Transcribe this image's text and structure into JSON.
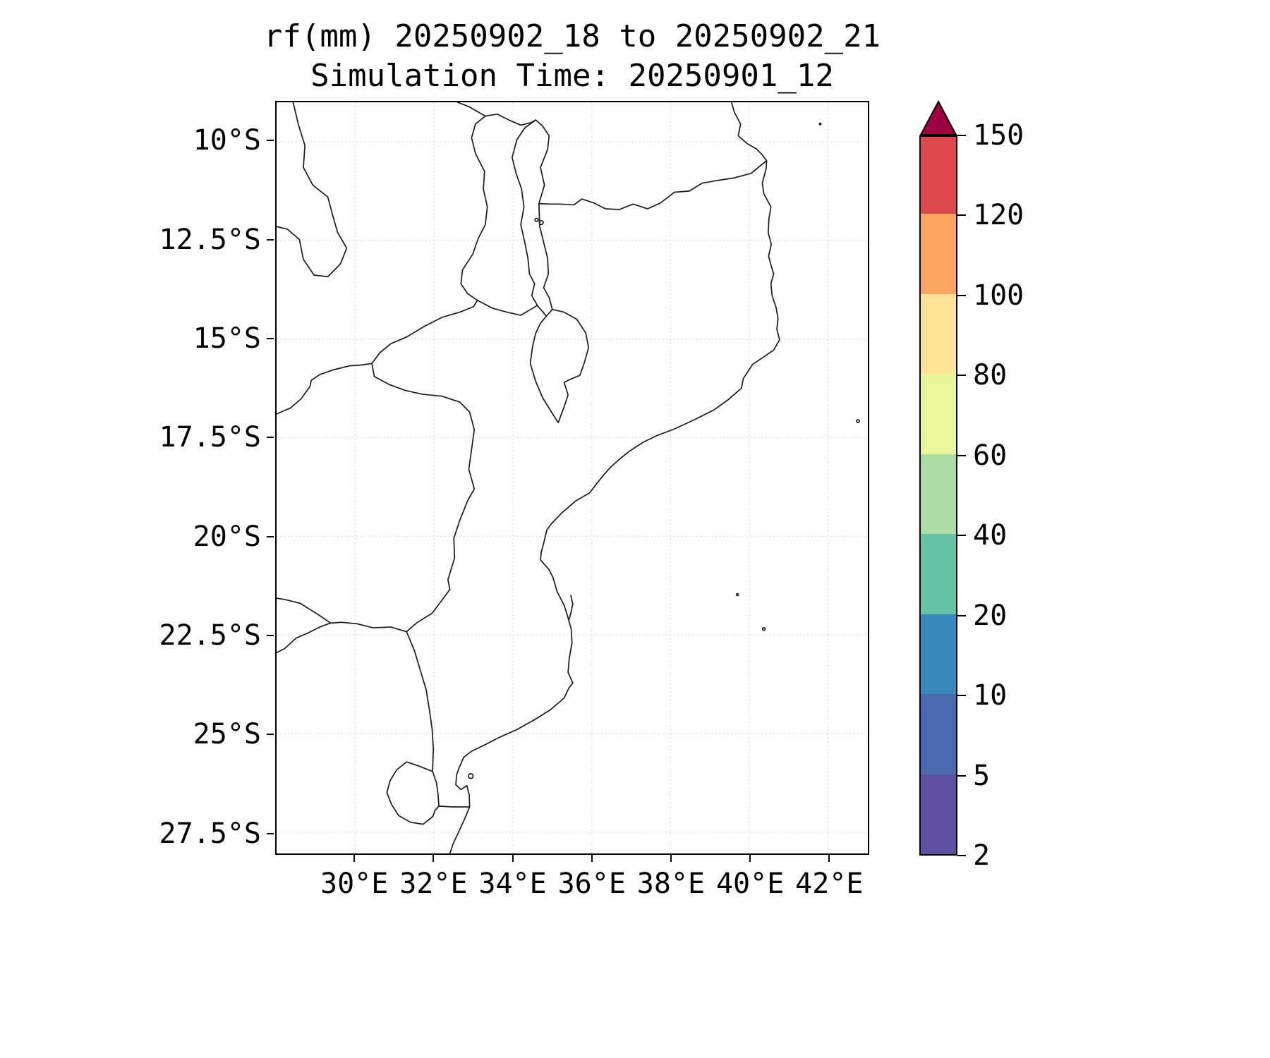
{
  "title": {
    "line1": "rf(mm) 20250902_18 to 20250902_21",
    "line2": "Simulation Time: 20250901_12"
  },
  "axes": {
    "extent": {
      "lon_min": 28.0,
      "lon_max": 43.01,
      "lat_min": 9.0,
      "lat_max": 28.04
    },
    "x_ticks": [
      {
        "lon": 30,
        "label": "30°E"
      },
      {
        "lon": 32,
        "label": "32°E"
      },
      {
        "lon": 34,
        "label": "34°E"
      },
      {
        "lon": 36,
        "label": "36°E"
      },
      {
        "lon": 38,
        "label": "38°E"
      },
      {
        "lon": 40,
        "label": "40°E"
      },
      {
        "lon": 42,
        "label": "42°E"
      }
    ],
    "y_ticks": [
      {
        "lat": 10,
        "label": "10°S"
      },
      {
        "lat": 12.5,
        "label": "12.5°S"
      },
      {
        "lat": 15,
        "label": "15°S"
      },
      {
        "lat": 17.5,
        "label": "17.5°S"
      },
      {
        "lat": 20,
        "label": "20°S"
      },
      {
        "lat": 22.5,
        "label": "22.5°S"
      },
      {
        "lat": 25,
        "label": "25°S"
      },
      {
        "lat": 27.5,
        "label": "27.5°S"
      }
    ]
  },
  "colorbar": {
    "levels": [
      2,
      5,
      10,
      20,
      40,
      60,
      80,
      100,
      120,
      150
    ],
    "tick_labels": [
      "2",
      "5",
      "10",
      "20",
      "40",
      "60",
      "80",
      "100",
      "120",
      "150"
    ],
    "band_colors": [
      "#5e4fa2",
      "#4a69af",
      "#3989bd",
      "#66c2a5",
      "#abdda4",
      "#e8f59b",
      "#fee499",
      "#fca55f",
      "#dc484c"
    ],
    "extend_color": "#9e0142"
  },
  "map": {
    "outline_color": "#1a1a1a",
    "grid_color": "#c9c9c9",
    "polylines": {
      "coastline": [
        [
          39.55,
          9.0
        ],
        [
          39.62,
          9.25
        ],
        [
          39.78,
          9.55
        ],
        [
          39.72,
          9.85
        ],
        [
          39.95,
          10.05
        ],
        [
          40.18,
          10.18
        ],
        [
          40.32,
          10.32
        ],
        [
          40.44,
          10.48
        ],
        [
          40.43,
          10.68
        ],
        [
          40.33,
          11.05
        ],
        [
          40.37,
          11.32
        ],
        [
          40.55,
          11.65
        ],
        [
          40.5,
          11.95
        ],
        [
          40.48,
          12.3
        ],
        [
          40.56,
          12.6
        ],
        [
          40.49,
          12.9
        ],
        [
          40.55,
          13.12
        ],
        [
          40.62,
          13.35
        ],
        [
          40.55,
          13.6
        ],
        [
          40.58,
          13.9
        ],
        [
          40.68,
          14.2
        ],
        [
          40.73,
          14.48
        ],
        [
          40.7,
          14.75
        ],
        [
          40.77,
          15.02
        ],
        [
          40.62,
          15.28
        ],
        [
          40.3,
          15.5
        ],
        [
          40.08,
          15.65
        ],
        [
          39.85,
          16.0
        ],
        [
          39.8,
          16.25
        ],
        [
          39.45,
          16.55
        ],
        [
          39.1,
          16.8
        ],
        [
          38.6,
          17.05
        ],
        [
          38.1,
          17.28
        ],
        [
          37.65,
          17.45
        ],
        [
          37.3,
          17.62
        ],
        [
          36.95,
          17.85
        ],
        [
          36.7,
          18.05
        ],
        [
          36.48,
          18.25
        ],
        [
          36.3,
          18.45
        ],
        [
          36.1,
          18.7
        ],
        [
          35.95,
          18.9
        ],
        [
          35.6,
          19.1
        ],
        [
          35.25,
          19.4
        ],
        [
          34.98,
          19.68
        ],
        [
          34.86,
          19.84
        ],
        [
          34.8,
          20.1
        ],
        [
          34.72,
          20.4
        ],
        [
          34.7,
          20.6
        ],
        [
          34.92,
          20.85
        ],
        [
          35.02,
          21.05
        ],
        [
          35.12,
          21.4
        ],
        [
          35.3,
          21.75
        ],
        [
          35.38,
          22.0
        ],
        [
          35.48,
          22.35
        ],
        [
          35.5,
          22.7
        ],
        [
          35.43,
          23.1
        ],
        [
          35.4,
          23.45
        ],
        [
          35.52,
          23.72
        ],
        [
          35.42,
          23.85
        ],
        [
          35.3,
          24.1
        ],
        [
          34.95,
          24.4
        ],
        [
          34.55,
          24.65
        ],
        [
          34.1,
          24.9
        ],
        [
          33.65,
          25.1
        ],
        [
          33.3,
          25.28
        ],
        [
          32.95,
          25.45
        ],
        [
          32.75,
          25.6
        ],
        [
          32.63,
          25.88
        ],
        [
          32.57,
          26.05
        ],
        [
          32.55,
          26.3
        ],
        [
          32.68,
          26.42
        ],
        [
          32.83,
          26.32
        ],
        [
          32.89,
          26.55
        ],
        [
          32.9,
          26.86
        ],
        [
          32.78,
          27.15
        ],
        [
          32.62,
          27.5
        ],
        [
          32.48,
          27.8
        ],
        [
          32.4,
          28.04
        ]
      ],
      "rovuma-border": [
        [
          40.44,
          10.48
        ],
        [
          40.05,
          10.8
        ],
        [
          39.6,
          10.92
        ],
        [
          39.2,
          10.98
        ],
        [
          38.8,
          11.05
        ],
        [
          38.48,
          11.25
        ],
        [
          38.1,
          11.28
        ],
        [
          37.75,
          11.55
        ],
        [
          37.42,
          11.7
        ],
        [
          37.05,
          11.58
        ],
        [
          36.7,
          11.72
        ],
        [
          36.35,
          11.7
        ],
        [
          36.05,
          11.55
        ],
        [
          35.75,
          11.45
        ],
        [
          35.55,
          11.6
        ],
        [
          35.2,
          11.58
        ],
        [
          34.95,
          11.58
        ],
        [
          34.66,
          11.57
        ]
      ],
      "lake-malawi": [
        [
          34.58,
          9.45
        ],
        [
          34.3,
          9.65
        ],
        [
          34.1,
          9.95
        ],
        [
          33.98,
          10.4
        ],
        [
          34.08,
          10.8
        ],
        [
          34.22,
          11.2
        ],
        [
          34.28,
          11.65
        ],
        [
          34.2,
          12.1
        ],
        [
          34.3,
          12.55
        ],
        [
          34.38,
          12.95
        ],
        [
          34.42,
          13.35
        ],
        [
          34.55,
          13.6
        ],
        [
          34.48,
          13.9
        ],
        [
          34.62,
          14.15
        ],
        [
          34.85,
          14.42
        ],
        [
          35.0,
          14.25
        ],
        [
          34.92,
          13.95
        ],
        [
          34.78,
          13.7
        ],
        [
          34.9,
          13.35
        ],
        [
          34.88,
          12.95
        ],
        [
          34.78,
          12.55
        ],
        [
          34.68,
          12.15
        ],
        [
          34.66,
          11.57
        ],
        [
          34.8,
          11.1
        ],
        [
          34.7,
          10.65
        ],
        [
          34.88,
          10.2
        ],
        [
          34.92,
          9.85
        ],
        [
          34.75,
          9.6
        ],
        [
          34.58,
          9.45
        ]
      ],
      "malawi-tanzania-border": [
        [
          33.3,
          9.35
        ],
        [
          33.6,
          9.3
        ],
        [
          33.9,
          9.45
        ],
        [
          34.2,
          9.58
        ],
        [
          34.45,
          9.52
        ],
        [
          34.58,
          9.45
        ]
      ],
      "tanzania-zambia-border": [
        [
          33.3,
          9.35
        ],
        [
          32.9,
          9.12
        ],
        [
          32.6,
          9.0
        ]
      ],
      "malawi-west-border": [
        [
          33.3,
          9.35
        ],
        [
          33.05,
          9.55
        ],
        [
          32.95,
          9.9
        ],
        [
          33.05,
          10.3
        ],
        [
          33.28,
          10.75
        ],
        [
          33.25,
          11.2
        ],
        [
          33.35,
          11.65
        ],
        [
          33.3,
          12.1
        ],
        [
          33.12,
          12.45
        ],
        [
          32.98,
          12.85
        ],
        [
          32.72,
          13.25
        ],
        [
          32.68,
          13.6
        ],
        [
          32.85,
          13.85
        ],
        [
          33.1,
          14.02
        ]
      ],
      "zambia-mozambique-border": [
        [
          30.42,
          15.62
        ],
        [
          30.62,
          15.35
        ],
        [
          30.9,
          15.12
        ],
        [
          31.3,
          14.95
        ],
        [
          31.75,
          14.68
        ],
        [
          32.2,
          14.45
        ],
        [
          32.65,
          14.32
        ],
        [
          33.0,
          14.18
        ],
        [
          33.1,
          14.02
        ]
      ],
      "malawi-mozambique-border": [
        [
          33.1,
          14.02
        ],
        [
          33.48,
          14.22
        ],
        [
          33.85,
          14.32
        ],
        [
          34.2,
          14.4
        ],
        [
          34.62,
          14.15
        ]
      ],
      "malawi-south-lobe": [
        [
          35.0,
          14.25
        ],
        [
          35.3,
          14.32
        ],
        [
          35.62,
          14.5
        ],
        [
          35.85,
          14.85
        ],
        [
          35.92,
          15.22
        ],
        [
          35.82,
          15.58
        ],
        [
          35.7,
          15.92
        ],
        [
          35.46,
          16.02
        ],
        [
          35.3,
          16.1
        ],
        [
          35.4,
          16.42
        ],
        [
          35.3,
          16.72
        ],
        [
          35.15,
          17.12
        ],
        [
          34.96,
          16.82
        ],
        [
          34.76,
          16.5
        ],
        [
          34.58,
          16.08
        ],
        [
          34.44,
          15.62
        ],
        [
          34.5,
          15.18
        ],
        [
          34.58,
          14.85
        ],
        [
          34.7,
          14.6
        ],
        [
          34.85,
          14.42
        ]
      ],
      "zambezi-kariba-border": [
        [
          28.0,
          16.9
        ],
        [
          28.35,
          16.75
        ],
        [
          28.62,
          16.52
        ],
        [
          28.85,
          16.2
        ],
        [
          28.88,
          16.05
        ],
        [
          29.1,
          15.9
        ],
        [
          29.45,
          15.78
        ],
        [
          29.85,
          15.68
        ],
        [
          30.15,
          15.66
        ],
        [
          30.42,
          15.62
        ]
      ],
      "zimbabwe-mozambique-border": [
        [
          30.42,
          15.62
        ],
        [
          30.48,
          15.95
        ],
        [
          30.85,
          16.15
        ],
        [
          31.25,
          16.3
        ],
        [
          31.7,
          16.4
        ],
        [
          32.2,
          16.45
        ],
        [
          32.65,
          16.6
        ],
        [
          32.9,
          16.85
        ],
        [
          33.02,
          17.3
        ],
        [
          32.95,
          17.8
        ],
        [
          32.88,
          18.3
        ],
        [
          33.02,
          18.8
        ],
        [
          32.85,
          19.1
        ],
        [
          32.65,
          19.6
        ],
        [
          32.5,
          20.05
        ],
        [
          32.52,
          20.55
        ],
        [
          32.35,
          21.1
        ],
        [
          32.4,
          21.35
        ],
        [
          31.95,
          21.95
        ],
        [
          31.55,
          22.2
        ],
        [
          31.3,
          22.42
        ]
      ],
      "limpopo-border": [
        [
          31.3,
          22.42
        ],
        [
          30.9,
          22.3
        ],
        [
          30.45,
          22.32
        ],
        [
          30.05,
          22.22
        ],
        [
          29.65,
          22.18
        ],
        [
          29.37,
          22.2
        ]
      ],
      "botswana-zimbabwe-border": [
        [
          29.37,
          22.2
        ],
        [
          29.05,
          21.98
        ],
        [
          28.6,
          21.7
        ],
        [
          28.2,
          21.6
        ],
        [
          28.0,
          21.57
        ]
      ],
      "botswana-southafrica-border": [
        [
          29.37,
          22.2
        ],
        [
          29.1,
          22.3
        ],
        [
          28.8,
          22.45
        ],
        [
          28.5,
          22.58
        ],
        [
          28.2,
          22.85
        ],
        [
          28.0,
          22.95
        ]
      ],
      "lebombo-border": [
        [
          31.3,
          22.42
        ],
        [
          31.5,
          22.9
        ],
        [
          31.65,
          23.4
        ],
        [
          31.8,
          23.9
        ],
        [
          31.88,
          24.4
        ],
        [
          31.95,
          24.9
        ],
        [
          31.98,
          25.4
        ],
        [
          31.96,
          25.96
        ]
      ],
      "mozambique-eswatini-border": [
        [
          31.96,
          25.96
        ],
        [
          32.06,
          26.25
        ],
        [
          32.1,
          26.55
        ],
        [
          32.12,
          26.84
        ]
      ],
      "southafrica-mozambique-south-border": [
        [
          32.12,
          26.84
        ],
        [
          32.45,
          26.86
        ],
        [
          32.9,
          26.86
        ]
      ],
      "eswatini-outline": [
        [
          31.96,
          25.96
        ],
        [
          31.6,
          25.82
        ],
        [
          31.3,
          25.72
        ],
        [
          31.05,
          25.92
        ],
        [
          30.88,
          26.2
        ],
        [
          30.8,
          26.5
        ],
        [
          30.92,
          26.8
        ],
        [
          31.1,
          27.08
        ],
        [
          31.4,
          27.25
        ],
        [
          31.72,
          27.3
        ],
        [
          31.97,
          27.1
        ],
        [
          32.02,
          26.95
        ],
        [
          32.12,
          26.84
        ]
      ],
      "luapula-pedicle-border": [
        [
          28.42,
          9.0
        ],
        [
          28.55,
          9.55
        ],
        [
          28.72,
          10.1
        ],
        [
          28.68,
          10.65
        ],
        [
          28.92,
          11.1
        ],
        [
          29.3,
          11.4
        ],
        [
          29.42,
          11.85
        ],
        [
          29.55,
          12.3
        ],
        [
          29.78,
          12.7
        ],
        [
          29.62,
          13.1
        ],
        [
          29.3,
          13.42
        ],
        [
          28.95,
          13.38
        ],
        [
          28.68,
          12.98
        ],
        [
          28.58,
          12.48
        ],
        [
          28.28,
          12.22
        ],
        [
          28.0,
          12.15
        ]
      ],
      "bazaruto-islands": [
        [
          35.47,
          21.5
        ],
        [
          35.52,
          21.72
        ],
        [
          35.47,
          21.95
        ],
        [
          35.43,
          22.1
        ]
      ]
    },
    "islands": [
      {
        "lon": 34.72,
        "lat": 12.05,
        "r": 0.05
      },
      {
        "lon": 34.6,
        "lat": 11.98,
        "r": 0.04
      },
      {
        "lon": 32.93,
        "lat": 26.08,
        "r": 0.06
      },
      {
        "lon": 42.76,
        "lat": 17.08,
        "r": 0.035
      },
      {
        "lon": 40.37,
        "lat": 22.35,
        "r": 0.035
      },
      {
        "lon": 39.7,
        "lat": 21.48,
        "r": 0.025
      },
      {
        "lon": 41.8,
        "lat": 9.55,
        "r": 0.02
      }
    ]
  }
}
